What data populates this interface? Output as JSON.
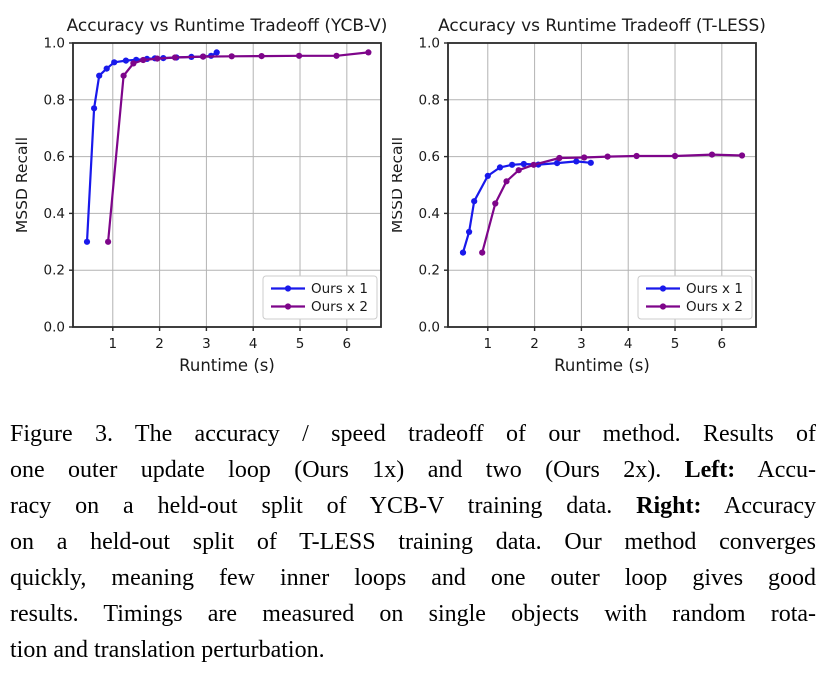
{
  "figure": {
    "name": "Figure 3",
    "caption_lines": [
      [
        {
          "t": "Figure 3. The accuracy / speed tradeoff of our method. Results of",
          "b": false
        }
      ],
      [
        {
          "t": "one outer update loop (Ours 1x) and two (Ours 2x). ",
          "b": false
        },
        {
          "t": "Left:",
          "b": true
        },
        {
          "t": " Accu-",
          "b": false
        }
      ],
      [
        {
          "t": "racy on a held-out split of YCB-V training data. ",
          "b": false
        },
        {
          "t": "Right:",
          "b": true
        },
        {
          "t": " Accuracy",
          "b": false
        }
      ],
      [
        {
          "t": "on a held-out split of T-LESS training data. Our method converges",
          "b": false
        }
      ],
      [
        {
          "t": "quickly, meaning few inner loops and one outer loop gives good",
          "b": false
        }
      ],
      [
        {
          "t": "results. Timings are measured on single objects with random rota-",
          "b": false
        }
      ],
      [
        {
          "t": "tion and translation perturbation.",
          "b": false
        }
      ]
    ]
  },
  "colors": {
    "series_blue": "#1919eb",
    "series_purple": "#7e058a",
    "grid": "#b3b3b3",
    "spine": "#2a2a2a",
    "text": "#1a1a1a",
    "legend_border": "#cccccc",
    "legend_fill": "#ffffff"
  },
  "chart_data": [
    {
      "type": "line",
      "title": "Accuracy vs Runtime Tradeoff (YCB-V)",
      "xlabel": "Runtime (s)",
      "ylabel": "MSSD Recall",
      "xlim": [
        0.15,
        6.73
      ],
      "ylim": [
        0.0,
        1.0
      ],
      "xticks": [
        1,
        2,
        3,
        4,
        5,
        6
      ],
      "yticks": [
        0.0,
        0.2,
        0.4,
        0.6,
        0.8,
        1.0
      ],
      "grid": true,
      "legend_position": "lower right",
      "series": [
        {
          "name": "Ours x 1",
          "color": "#1919eb",
          "points": [
            [
              0.45,
              0.3
            ],
            [
              0.6,
              0.77
            ],
            [
              0.71,
              0.885
            ],
            [
              0.87,
              0.91
            ],
            [
              1.03,
              0.932
            ],
            [
              1.28,
              0.938
            ],
            [
              1.5,
              0.941
            ],
            [
              1.73,
              0.944
            ],
            [
              1.9,
              0.946
            ],
            [
              2.08,
              0.947
            ],
            [
              2.36,
              0.949
            ],
            [
              2.68,
              0.951
            ],
            [
              2.93,
              0.952
            ],
            [
              3.1,
              0.955
            ],
            [
              3.22,
              0.967
            ]
          ]
        },
        {
          "name": "Ours x 2",
          "color": "#7e058a",
          "points": [
            [
              0.9,
              0.3
            ],
            [
              1.23,
              0.885
            ],
            [
              1.44,
              0.928
            ],
            [
              1.65,
              0.94
            ],
            [
              1.95,
              0.945
            ],
            [
              2.33,
              0.949
            ],
            [
              2.93,
              0.952
            ],
            [
              3.54,
              0.953
            ],
            [
              4.18,
              0.954
            ],
            [
              4.98,
              0.955
            ],
            [
              5.78,
              0.955
            ],
            [
              6.46,
              0.967
            ]
          ]
        }
      ]
    },
    {
      "type": "line",
      "title": "Accuracy vs Runtime Tradeoff (T-LESS)",
      "xlabel": "Runtime (s)",
      "ylabel": "MSSD Recall",
      "xlim": [
        0.15,
        6.73
      ],
      "ylim": [
        0.0,
        1.0
      ],
      "xticks": [
        1,
        2,
        3,
        4,
        5,
        6
      ],
      "yticks": [
        0.0,
        0.2,
        0.4,
        0.6,
        0.8,
        1.0
      ],
      "grid": true,
      "legend_position": "lower right",
      "series": [
        {
          "name": "Ours x 1",
          "color": "#1919eb",
          "points": [
            [
              0.47,
              0.262
            ],
            [
              0.6,
              0.335
            ],
            [
              0.71,
              0.443
            ],
            [
              1.0,
              0.532
            ],
            [
              1.26,
              0.562
            ],
            [
              1.52,
              0.571
            ],
            [
              1.77,
              0.574
            ],
            [
              2.08,
              0.572
            ],
            [
              2.48,
              0.577
            ],
            [
              2.89,
              0.583
            ],
            [
              3.2,
              0.578
            ]
          ]
        },
        {
          "name": "Ours x 2",
          "color": "#7e058a",
          "points": [
            [
              0.88,
              0.262
            ],
            [
              1.16,
              0.435
            ],
            [
              1.4,
              0.513
            ],
            [
              1.66,
              0.552
            ],
            [
              1.98,
              0.571
            ],
            [
              2.53,
              0.595
            ],
            [
              3.06,
              0.597
            ],
            [
              3.56,
              0.6
            ],
            [
              4.18,
              0.602
            ],
            [
              5.0,
              0.602
            ],
            [
              5.79,
              0.607
            ],
            [
              6.43,
              0.604
            ]
          ]
        }
      ]
    }
  ]
}
